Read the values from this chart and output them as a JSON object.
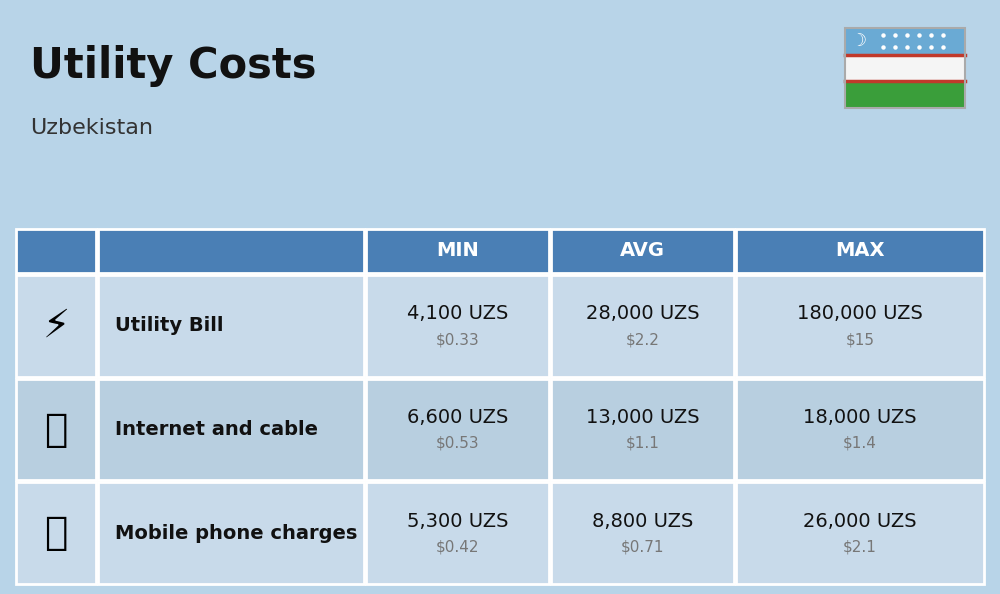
{
  "title": "Utility Costs",
  "subtitle": "Uzbekistan",
  "background_color": "#b8d4e8",
  "header_bg_color": "#4a7fb5",
  "header_text_color": "#ffffff",
  "row_bg_color_odd": "#c8daea",
  "row_bg_color_even": "#b8cfe0",
  "table_border_color": "#ffffff",
  "icon_col_bg": "#b0c8dc",
  "headers": [
    "MIN",
    "AVG",
    "MAX"
  ],
  "rows": [
    {
      "label": "Utility Bill",
      "min_uzs": "4,100 UZS",
      "min_usd": "$0.33",
      "avg_uzs": "28,000 UZS",
      "avg_usd": "$2.2",
      "max_uzs": "180,000 UZS",
      "max_usd": "$15"
    },
    {
      "label": "Internet and cable",
      "min_uzs": "6,600 UZS",
      "min_usd": "$0.53",
      "avg_uzs": "13,000 UZS",
      "avg_usd": "$1.1",
      "max_uzs": "18,000 UZS",
      "max_usd": "$1.4"
    },
    {
      "label": "Mobile phone charges",
      "min_uzs": "5,300 UZS",
      "min_usd": "$0.42",
      "avg_uzs": "8,800 UZS",
      "avg_usd": "$0.71",
      "max_uzs": "26,000 UZS",
      "max_usd": "$2.1"
    }
  ],
  "flag_blue": "#6aaad4",
  "flag_white": "#f5f5f5",
  "flag_green": "#3a9e3a",
  "flag_red_line": "#c0392b",
  "title_fontsize": 30,
  "subtitle_fontsize": 16,
  "uzs_fontsize": 14,
  "usd_fontsize": 11,
  "label_fontsize": 14,
  "header_fontsize": 14
}
